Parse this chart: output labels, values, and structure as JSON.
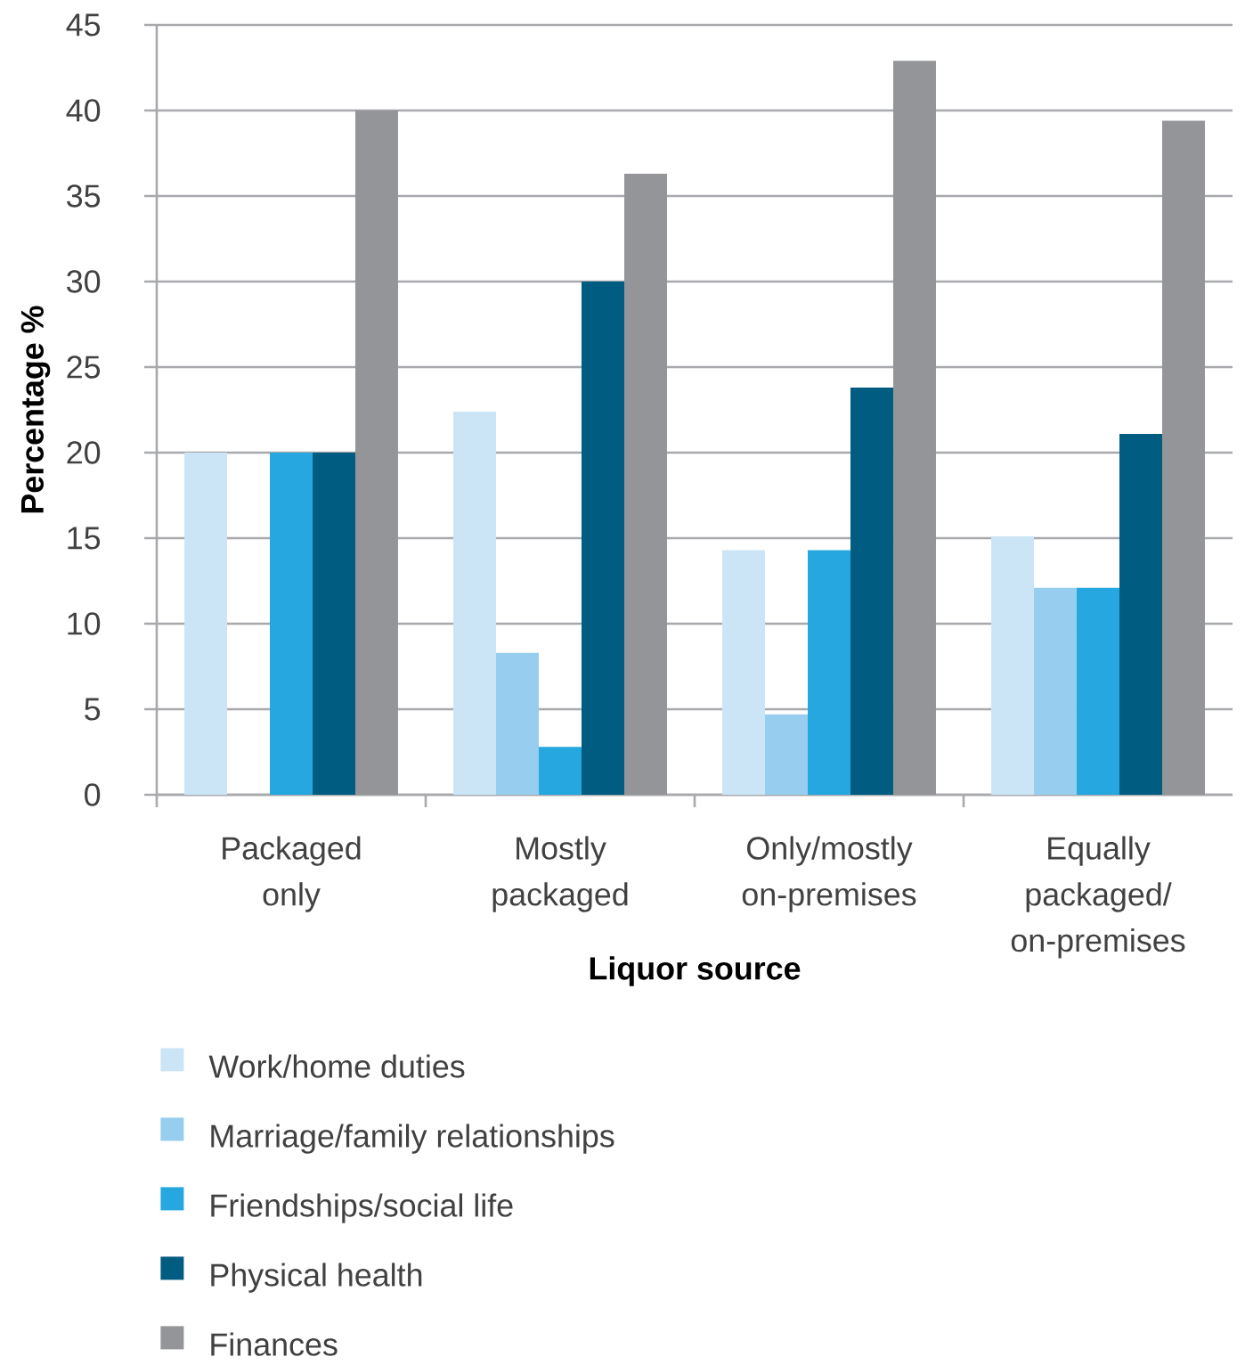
{
  "chart_data": {
    "type": "bar",
    "xlabel": "Liquor source",
    "ylabel": "Percentage %",
    "categories": [
      "Packaged only",
      "Mostly packaged",
      "Only/mostly on-premises",
      "Equally packaged/ on-premises"
    ],
    "series": [
      {
        "name": "Work/home duties",
        "color": "#cbe5f6",
        "values": [
          20,
          22.4,
          14.3,
          15.1
        ]
      },
      {
        "name": "Marriage/family relationships",
        "color": "#97cdee",
        "values": [
          0,
          8.3,
          4.7,
          12.1
        ]
      },
      {
        "name": "Friendships/social life",
        "color": "#27a7df",
        "values": [
          20,
          2.8,
          14.3,
          12.1
        ]
      },
      {
        "name": "Physical health",
        "color": "#015c81",
        "values": [
          20,
          30,
          23.8,
          21.1
        ]
      },
      {
        "name": "Finances",
        "color": "#939598",
        "values": [
          40,
          36.3,
          42.9,
          39.4
        ]
      }
    ],
    "ylim": [
      0,
      45
    ],
    "yticks": [
      0,
      5,
      10,
      15,
      20,
      25,
      30,
      35,
      40,
      45
    ],
    "grid": "y",
    "legend": "bottom"
  }
}
